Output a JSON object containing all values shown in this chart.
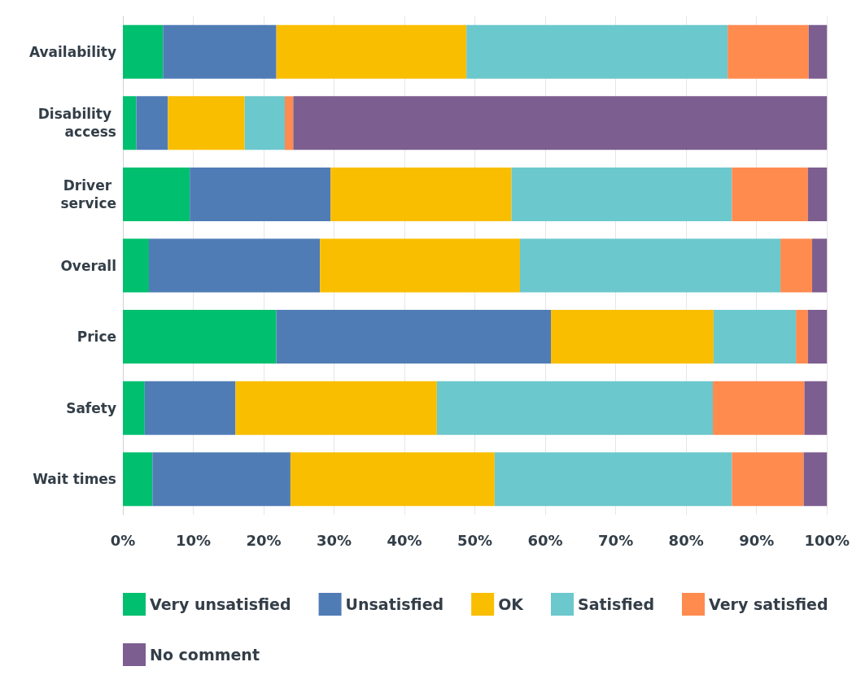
{
  "chart_data": {
    "type": "bar",
    "orientation": "horizontal",
    "stacked": true,
    "categories": [
      "Availability",
      "Disability access",
      "Driver service",
      "Overall",
      "Price",
      "Safety",
      "Wait times"
    ],
    "series": [
      {
        "name": "Very unsatisfied",
        "color": "#00bf6f",
        "values": [
          5.7,
          1.9,
          9.5,
          3.7,
          21.8,
          3.1,
          4.2
        ]
      },
      {
        "name": "Unsatisfied",
        "color": "#507cb6",
        "values": [
          16.1,
          4.5,
          20.0,
          24.3,
          39.0,
          12.9,
          19.6
        ]
      },
      {
        "name": "OK",
        "color": "#f9be00",
        "values": [
          27.0,
          10.9,
          25.7,
          28.4,
          23.1,
          28.6,
          29.0
        ]
      },
      {
        "name": "Satisfied",
        "color": "#6bc8cd",
        "values": [
          37.1,
          5.7,
          31.3,
          37.0,
          11.7,
          39.2,
          33.7
        ]
      },
      {
        "name": "Very satisfied",
        "color": "#ff8b4f",
        "values": [
          11.5,
          1.2,
          10.8,
          4.5,
          1.7,
          13.0,
          10.2
        ]
      },
      {
        "name": "No comment",
        "color": "#7d5e90",
        "values": [
          2.6,
          75.8,
          2.7,
          2.1,
          2.7,
          3.2,
          3.3
        ]
      }
    ],
    "xlim": [
      0,
      100
    ],
    "xticks": [
      {
        "value": 0,
        "label": "0%"
      },
      {
        "value": 10,
        "label": "10%"
      },
      {
        "value": 20,
        "label": "20%"
      },
      {
        "value": 30,
        "label": "30%"
      },
      {
        "value": 40,
        "label": "40%"
      },
      {
        "value": 50,
        "label": "50%"
      },
      {
        "value": 60,
        "label": "60%"
      },
      {
        "value": 70,
        "label": "70%"
      },
      {
        "value": 80,
        "label": "80%"
      },
      {
        "value": 90,
        "label": "90%"
      },
      {
        "value": 100,
        "label": "100%"
      }
    ],
    "grid": "x",
    "legend": "bottom left"
  }
}
